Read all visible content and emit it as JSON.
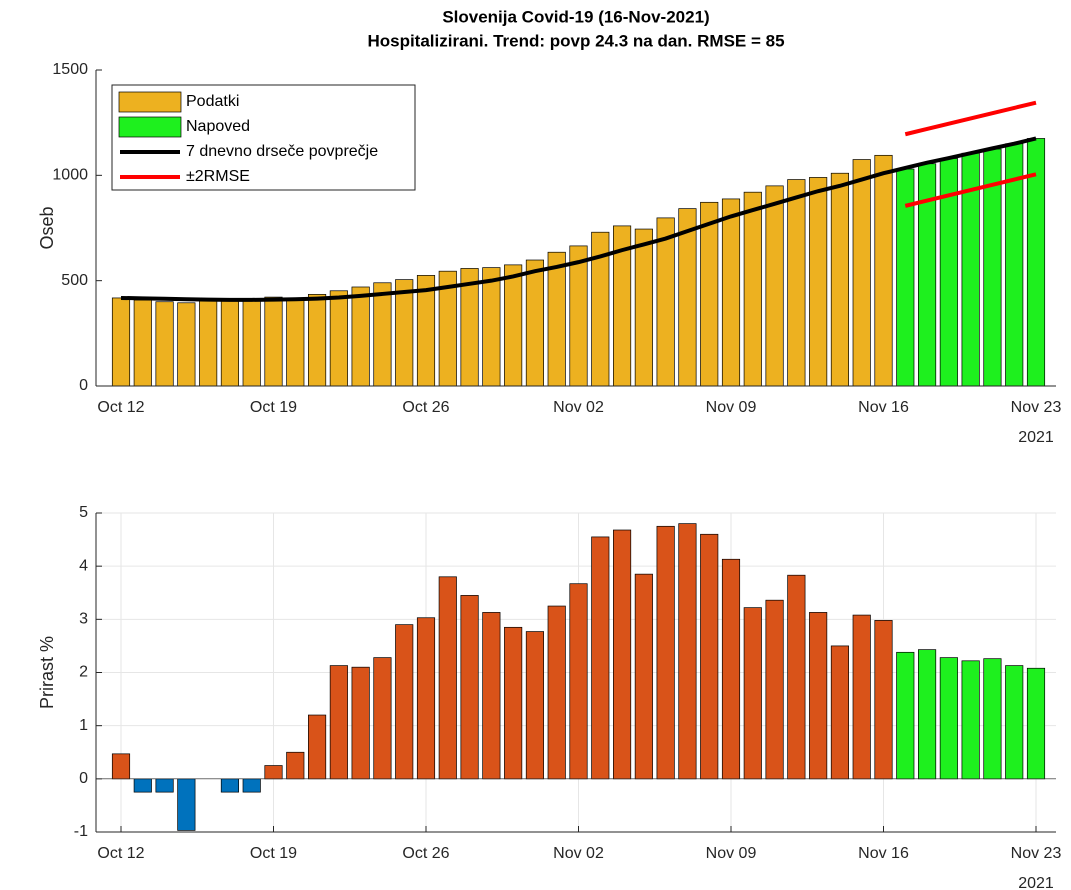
{
  "chart_data": [
    {
      "type": "bar",
      "title": "Slovenija Covid-19 (16-Nov-2021)",
      "subtitle": "Hospitalizirani. Trend: povp 24.3 na dan. RMSE = 85",
      "ylabel": "Oseb",
      "x": [
        "2021-10-12",
        "2021-10-13",
        "2021-10-14",
        "2021-10-15",
        "2021-10-16",
        "2021-10-17",
        "2021-10-18",
        "2021-10-19",
        "2021-10-20",
        "2021-10-21",
        "2021-10-22",
        "2021-10-23",
        "2021-10-24",
        "2021-10-25",
        "2021-10-26",
        "2021-10-27",
        "2021-10-28",
        "2021-10-29",
        "2021-10-30",
        "2021-10-31",
        "2021-11-01",
        "2021-11-02",
        "2021-11-03",
        "2021-11-04",
        "2021-11-05",
        "2021-11-06",
        "2021-11-07",
        "2021-11-08",
        "2021-11-09",
        "2021-11-10",
        "2021-11-11",
        "2021-11-12",
        "2021-11-13",
        "2021-11-14",
        "2021-11-15",
        "2021-11-16",
        "2021-11-17",
        "2021-11-18",
        "2021-11-19",
        "2021-11-20",
        "2021-11-21",
        "2021-11-22",
        "2021-11-23"
      ],
      "xticks": [
        {
          "value": "2021-10-12",
          "label": "Oct 12"
        },
        {
          "value": "2021-10-19",
          "label": "Oct 19"
        },
        {
          "value": "2021-10-26",
          "label": "Oct 26"
        },
        {
          "value": "2021-11-02",
          "label": "Nov 02"
        },
        {
          "value": "2021-11-09",
          "label": "Nov 09"
        },
        {
          "value": "2021-11-16",
          "label": "Nov 16"
        },
        {
          "value": "2021-11-23",
          "label": "Nov 23"
        }
      ],
      "x_year_label": "2021",
      "ylim": [
        0,
        1500
      ],
      "yticks": [
        0,
        500,
        1000,
        1500
      ],
      "grid": false,
      "legend": "top-left",
      "series": [
        {
          "name": "Podatki",
          "type": "bar",
          "color": "#EDB120",
          "values": [
            418,
            408,
            400,
            395,
            405,
            410,
            410,
            422,
            415,
            435,
            452,
            470,
            490,
            505,
            525,
            545,
            558,
            562,
            575,
            598,
            635,
            665,
            730,
            760,
            745,
            798,
            842,
            872,
            888,
            920,
            950,
            980,
            990,
            1010,
            1075,
            1095,
            null,
            null,
            null,
            null,
            null,
            null,
            null
          ]
        },
        {
          "name": "Napoved",
          "type": "bar",
          "color": "#1EF01E",
          "values": [
            null,
            null,
            null,
            null,
            null,
            null,
            null,
            null,
            null,
            null,
            null,
            null,
            null,
            null,
            null,
            null,
            null,
            null,
            null,
            null,
            null,
            null,
            null,
            null,
            null,
            null,
            null,
            null,
            null,
            null,
            null,
            null,
            null,
            null,
            null,
            null,
            1030,
            1055,
            1080,
            1105,
            1125,
            1150,
            1175
          ]
        },
        {
          "name": "7 dnevno drseče povprečje",
          "type": "line",
          "color": "#000000",
          "values": [
            418,
            416,
            414,
            412,
            410,
            409,
            409,
            410,
            412,
            415,
            420,
            428,
            437,
            446,
            455,
            470,
            485,
            500,
            520,
            545,
            565,
            588,
            615,
            645,
            672,
            700,
            735,
            770,
            805,
            835,
            865,
            895,
            925,
            950,
            980,
            1010,
            1035,
            1060,
            1082,
            1105,
            1128,
            1150,
            1175
          ]
        },
        {
          "name": "±2RMSE",
          "type": "line",
          "color": "#FF0000",
          "values": [
            null,
            null,
            null,
            null,
            null,
            null,
            null,
            null,
            null,
            null,
            null,
            null,
            null,
            null,
            null,
            null,
            null,
            null,
            null,
            null,
            null,
            null,
            null,
            null,
            null,
            null,
            null,
            null,
            null,
            null,
            null,
            null,
            null,
            null,
            null,
            null,
            1195,
            1220,
            1245,
            1270,
            1295,
            1320,
            1345
          ]
        },
        {
          "type": "line",
          "color": "#FF0000",
          "values": [
            null,
            null,
            null,
            null,
            null,
            null,
            null,
            null,
            null,
            null,
            null,
            null,
            null,
            null,
            null,
            null,
            null,
            null,
            null,
            null,
            null,
            null,
            null,
            null,
            null,
            null,
            null,
            null,
            null,
            null,
            null,
            null,
            null,
            null,
            null,
            null,
            855,
            880,
            905,
            930,
            955,
            980,
            1005
          ]
        }
      ]
    },
    {
      "type": "bar",
      "ylabel": "Prirast %",
      "x": [
        "2021-10-12",
        "2021-10-13",
        "2021-10-14",
        "2021-10-15",
        "2021-10-16",
        "2021-10-17",
        "2021-10-18",
        "2021-10-19",
        "2021-10-20",
        "2021-10-21",
        "2021-10-22",
        "2021-10-23",
        "2021-10-24",
        "2021-10-25",
        "2021-10-26",
        "2021-10-27",
        "2021-10-28",
        "2021-10-29",
        "2021-10-30",
        "2021-10-31",
        "2021-11-01",
        "2021-11-02",
        "2021-11-03",
        "2021-11-04",
        "2021-11-05",
        "2021-11-06",
        "2021-11-07",
        "2021-11-08",
        "2021-11-09",
        "2021-11-10",
        "2021-11-11",
        "2021-11-12",
        "2021-11-13",
        "2021-11-14",
        "2021-11-15",
        "2021-11-16",
        "2021-11-17",
        "2021-11-18",
        "2021-11-19",
        "2021-11-20",
        "2021-11-21",
        "2021-11-22",
        "2021-11-23"
      ],
      "xticks": [
        {
          "value": "2021-10-12",
          "label": "Oct 12"
        },
        {
          "value": "2021-10-19",
          "label": "Oct 19"
        },
        {
          "value": "2021-10-26",
          "label": "Oct 26"
        },
        {
          "value": "2021-11-02",
          "label": "Nov 02"
        },
        {
          "value": "2021-11-09",
          "label": "Nov 09"
        },
        {
          "value": "2021-11-16",
          "label": "Nov 16"
        },
        {
          "value": "2021-11-23",
          "label": "Nov 23"
        }
      ],
      "x_year_label": "2021",
      "ylim": [
        -1,
        5
      ],
      "yticks": [
        -1,
        0,
        1,
        2,
        3,
        4,
        5
      ],
      "grid": true,
      "series": [
        {
          "type": "bar",
          "color": "#D95319",
          "color_negative": "#0072BD",
          "values": [
            0.47,
            -0.25,
            -0.25,
            -0.97,
            0,
            -0.25,
            -0.25,
            0.25,
            0.5,
            1.2,
            2.13,
            2.1,
            2.28,
            2.9,
            3.03,
            3.8,
            3.45,
            3.13,
            2.85,
            2.77,
            3.25,
            3.67,
            4.55,
            4.68,
            3.85,
            4.75,
            4.8,
            4.6,
            4.13,
            3.22,
            3.36,
            3.83,
            3.13,
            2.5,
            3.08,
            2.98,
            null,
            null,
            null,
            null,
            null,
            null,
            null
          ]
        },
        {
          "type": "bar",
          "color": "#1EF01E",
          "values": [
            null,
            null,
            null,
            null,
            null,
            null,
            null,
            null,
            null,
            null,
            null,
            null,
            null,
            null,
            null,
            null,
            null,
            null,
            null,
            null,
            null,
            null,
            null,
            null,
            null,
            null,
            null,
            null,
            null,
            null,
            null,
            null,
            null,
            null,
            null,
            null,
            2.38,
            2.43,
            2.28,
            2.22,
            2.26,
            2.13,
            2.08
          ]
        }
      ]
    }
  ]
}
